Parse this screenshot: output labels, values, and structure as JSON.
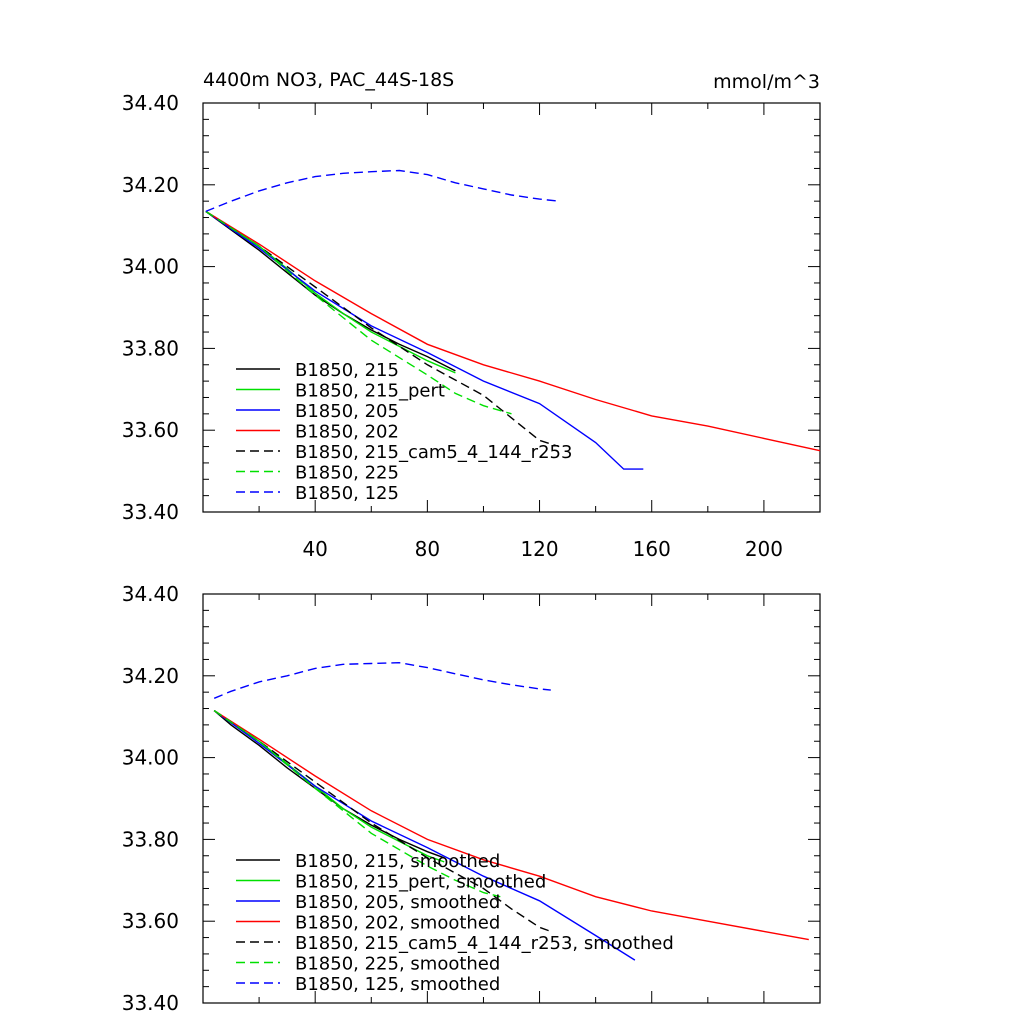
{
  "chart_data": [
    {
      "type": "line",
      "title": "4400m NO3, PAC_44S-18S",
      "units_label": "mmol/m^3",
      "xlim": [
        0,
        220
      ],
      "ylim": [
        33.4,
        34.4
      ],
      "y_ticks": [
        "33.40",
        "33.60",
        "33.80",
        "34.00",
        "34.20",
        "34.40"
      ],
      "x_ticks": [
        "40",
        "80",
        "120",
        "160",
        "200"
      ],
      "legend_position": "bottom-left",
      "series": [
        {
          "name": "B1850, 215",
          "color": "#000000",
          "dash": "solid",
          "x": [
            1,
            10,
            20,
            30,
            40,
            50,
            60,
            70,
            80,
            90
          ],
          "y": [
            34.135,
            34.09,
            34.04,
            33.985,
            33.93,
            33.885,
            33.845,
            33.81,
            33.78,
            33.745
          ]
        },
        {
          "name": "B1850, 215_pert",
          "color": "#00e000",
          "dash": "solid",
          "x": [
            1,
            10,
            20,
            30,
            40,
            50,
            60,
            70,
            80,
            90
          ],
          "y": [
            34.135,
            34.095,
            34.05,
            33.995,
            33.935,
            33.885,
            33.84,
            33.805,
            33.77,
            33.74
          ]
        },
        {
          "name": "B1850, 205",
          "color": "#0000ff",
          "dash": "solid",
          "x": [
            1,
            20,
            40,
            60,
            80,
            100,
            120,
            140,
            150,
            157
          ],
          "y": [
            34.135,
            34.045,
            33.94,
            33.855,
            33.79,
            33.72,
            33.665,
            33.57,
            33.505,
            33.505
          ]
        },
        {
          "name": "B1850, 202",
          "color": "#ff0000",
          "dash": "solid",
          "x": [
            1,
            20,
            40,
            60,
            80,
            100,
            120,
            140,
            160,
            180,
            200,
            220
          ],
          "y": [
            34.135,
            34.055,
            33.965,
            33.885,
            33.81,
            33.76,
            33.72,
            33.675,
            33.635,
            33.61,
            33.58,
            33.55
          ]
        },
        {
          "name": "B1850, 215_cam5_4_144_r253",
          "color": "#000000",
          "dash": "dashed",
          "x": [
            1,
            20,
            40,
            60,
            80,
            100,
            110,
            120,
            127
          ],
          "y": [
            34.135,
            34.05,
            33.95,
            33.85,
            33.76,
            33.685,
            33.63,
            33.575,
            33.56
          ]
        },
        {
          "name": "B1850, 225",
          "color": "#00e000",
          "dash": "dashed",
          "x": [
            1,
            20,
            40,
            60,
            80,
            90,
            100,
            110
          ],
          "y": [
            34.135,
            34.05,
            33.93,
            33.82,
            33.735,
            33.69,
            33.66,
            33.64
          ]
        },
        {
          "name": "B1850, 125",
          "color": "#0000ff",
          "dash": "dashed",
          "x": [
            1,
            10,
            20,
            30,
            40,
            50,
            60,
            70,
            80,
            90,
            100,
            110,
            120,
            127
          ],
          "y": [
            34.135,
            34.16,
            34.185,
            34.205,
            34.22,
            34.228,
            34.232,
            34.235,
            34.225,
            34.205,
            34.19,
            34.175,
            34.165,
            34.16
          ]
        }
      ]
    },
    {
      "type": "line",
      "xlim": [
        0,
        220
      ],
      "ylim": [
        33.4,
        34.4
      ],
      "y_ticks": [
        "33.40",
        "33.60",
        "33.80",
        "34.00",
        "34.20",
        "34.40"
      ],
      "legend_position": "bottom-left",
      "series": [
        {
          "name": "B1850, 215, smoothed",
          "color": "#000000",
          "dash": "solid",
          "x": [
            4,
            10,
            20,
            30,
            40,
            50,
            60,
            70,
            80,
            86
          ],
          "y": [
            34.115,
            34.08,
            34.03,
            33.975,
            33.925,
            33.875,
            33.835,
            33.8,
            33.77,
            33.755
          ]
        },
        {
          "name": "B1850, 215_pert, smoothed",
          "color": "#00e000",
          "dash": "solid",
          "x": [
            4,
            10,
            20,
            30,
            40,
            50,
            60,
            70,
            80,
            86
          ],
          "y": [
            34.115,
            34.085,
            34.04,
            33.985,
            33.93,
            33.875,
            33.83,
            33.795,
            33.76,
            33.745
          ]
        },
        {
          "name": "B1850, 205, smoothed",
          "color": "#0000ff",
          "dash": "solid",
          "x": [
            4,
            20,
            40,
            60,
            80,
            100,
            120,
            140,
            154
          ],
          "y": [
            34.115,
            34.035,
            33.93,
            33.845,
            33.78,
            33.71,
            33.65,
            33.565,
            33.505
          ]
        },
        {
          "name": "B1850, 202, smoothed",
          "color": "#ff0000",
          "dash": "solid",
          "x": [
            4,
            20,
            40,
            60,
            80,
            100,
            120,
            140,
            160,
            180,
            200,
            216
          ],
          "y": [
            34.115,
            34.045,
            33.955,
            33.87,
            33.8,
            33.75,
            33.71,
            33.66,
            33.625,
            33.6,
            33.575,
            33.555
          ]
        },
        {
          "name": "B1850, 215_cam5_4_144_r253, smoothed",
          "color": "#000000",
          "dash": "dashed",
          "x": [
            4,
            20,
            40,
            60,
            80,
            100,
            110,
            120,
            124
          ],
          "y": [
            34.115,
            34.04,
            33.94,
            33.84,
            33.755,
            33.68,
            33.63,
            33.585,
            33.575
          ]
        },
        {
          "name": "B1850, 225, smoothed",
          "color": "#00e000",
          "dash": "dashed",
          "x": [
            4,
            20,
            40,
            60,
            80,
            90,
            100,
            106
          ],
          "y": [
            34.115,
            34.04,
            33.925,
            33.815,
            33.735,
            33.7,
            33.67,
            33.66
          ]
        },
        {
          "name": "B1850, 125, smoothed",
          "color": "#0000ff",
          "dash": "dashed",
          "x": [
            4,
            10,
            20,
            30,
            40,
            50,
            60,
            70,
            80,
            90,
            100,
            110,
            120,
            124
          ],
          "y": [
            34.145,
            34.162,
            34.185,
            34.2,
            34.218,
            34.228,
            34.23,
            34.232,
            34.22,
            34.205,
            34.19,
            34.178,
            34.168,
            34.165
          ]
        }
      ]
    }
  ]
}
